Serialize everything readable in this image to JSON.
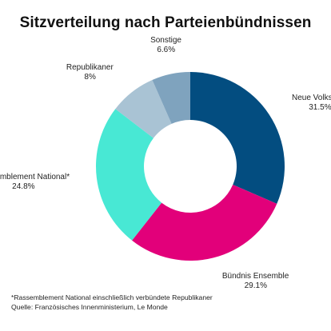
{
  "chart_data": {
    "type": "pie",
    "variant": "donut",
    "title": "Sitzverteilung nach Parteienbündnissen",
    "slices": [
      {
        "label": "Neue Volksfront",
        "value": 31.5,
        "value_label": "31.5%",
        "color": "#034d80"
      },
      {
        "label": "Bündnis Ensemble",
        "value": 29.1,
        "value_label": "29.1%",
        "color": "#e2007a"
      },
      {
        "label": "Rassemblement National*",
        "value": 24.8,
        "value_label": "24.8%",
        "color": "#48e8d4"
      },
      {
        "label": "Republikaner",
        "value": 8.0,
        "value_label": "8%",
        "color": "#a9c3d4"
      },
      {
        "label": "Sonstige",
        "value": 6.6,
        "value_label": "6.6%",
        "color": "#7fa3be"
      }
    ],
    "start_angle_deg": 0,
    "direction": "clockwise"
  },
  "footnotes": {
    "note": "*Rassemblement National einschließlich verbündete Republikaner",
    "source": "Quelle: Französisches Innenministerium, Le Monde"
  }
}
